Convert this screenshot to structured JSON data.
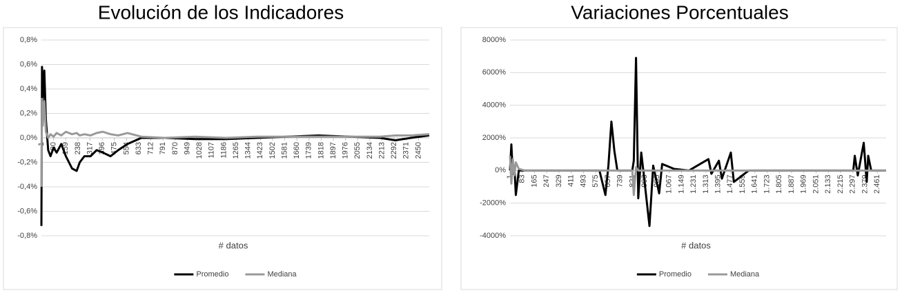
{
  "chart_data": [
    {
      "type": "line",
      "title": "Evolución de los Indicadores",
      "x_label": "# datos",
      "x": [
        1,
        5,
        10,
        20,
        30,
        45,
        60,
        80,
        100,
        130,
        160,
        200,
        230,
        250,
        280,
        320,
        360,
        400,
        450,
        500,
        560,
        650,
        800,
        1000,
        1200,
        1400,
        1600,
        1800,
        2000,
        2200,
        2300,
        2400,
        2520
      ],
      "series": [
        {
          "name": "Promedio",
          "color": "#000000",
          "values": [
            -0.72,
            0.58,
            0.3,
            0.55,
            0.15,
            -0.1,
            -0.15,
            -0.08,
            -0.12,
            -0.05,
            -0.15,
            -0.25,
            -0.27,
            -0.2,
            -0.15,
            -0.15,
            -0.1,
            -0.12,
            -0.15,
            -0.1,
            -0.05,
            0,
            0,
            -0.01,
            -0.01,
            0,
            0.01,
            0.02,
            0.01,
            0,
            -0.02,
            0,
            0.02
          ]
        },
        {
          "name": "Mediana",
          "color": "#999999",
          "values": [
            -0.4,
            0.32,
            0.1,
            0.3,
            0.05,
            0,
            0.03,
            0.01,
            0.04,
            0.02,
            0.05,
            0.03,
            0.04,
            0.02,
            0.03,
            0.02,
            0.04,
            0.05,
            0.03,
            0.02,
            0.04,
            0.01,
            0,
            0.01,
            0,
            0.01,
            0.01,
            0.01,
            0.01,
            0.01,
            0.02,
            0.02,
            0.03
          ]
        }
      ],
      "xlim": [
        1,
        2520
      ],
      "xticks": [
        1,
        80,
        159,
        238,
        317,
        396,
        475,
        554,
        633,
        712,
        791,
        870,
        949,
        1028,
        1107,
        1186,
        1265,
        1344,
        1423,
        1502,
        1581,
        1660,
        1739,
        1818,
        1897,
        1976,
        2055,
        2134,
        2213,
        2292,
        2371,
        2450
      ],
      "ylim": [
        -0.8,
        0.8
      ],
      "yticks": [
        {
          "value": -0.8,
          "label": "-0,8%"
        },
        {
          "value": -0.6,
          "label": "-0,6%"
        },
        {
          "value": -0.4,
          "label": "-0,4%"
        },
        {
          "value": -0.2,
          "label": "-0,2%"
        },
        {
          "value": 0,
          "label": "0,0%"
        },
        {
          "value": 0.2,
          "label": "0,2%"
        },
        {
          "value": 0.4,
          "label": "0,4%"
        },
        {
          "value": 0.6,
          "label": "0,6%"
        },
        {
          "value": 0.8,
          "label": "0,8%"
        }
      ],
      "grid": true,
      "legend": "bottom"
    },
    {
      "type": "line",
      "title": "Variaciones Porcentuales",
      "x_label": "# datos",
      "x": [
        1,
        10,
        20,
        30,
        40,
        60,
        100,
        300,
        600,
        640,
        660,
        680,
        700,
        720,
        820,
        830,
        845,
        860,
        880,
        900,
        935,
        960,
        1000,
        1020,
        1100,
        1200,
        1330,
        1350,
        1400,
        1420,
        1480,
        1500,
        1600,
        2000,
        2300,
        2310,
        2330,
        2370,
        2390,
        2400,
        2420,
        2520
      ],
      "series": [
        {
          "name": "Promedio",
          "color": "#000000",
          "values": [
            0,
            1600,
            -200,
            300,
            -1500,
            0,
            0,
            0,
            0,
            -1500,
            300,
            3000,
            1200,
            0,
            0,
            600,
            6900,
            -1700,
            1100,
            -500,
            -3400,
            300,
            -1400,
            400,
            100,
            0,
            700,
            -200,
            600,
            -500,
            1100,
            -700,
            0,
            0,
            0,
            900,
            -300,
            1700,
            -700,
            900,
            0,
            0
          ]
        },
        {
          "name": "Mediana",
          "color": "#999999",
          "values": [
            900,
            -800,
            700,
            -300,
            500,
            100,
            0,
            0,
            0,
            0,
            0,
            0,
            0,
            0,
            0,
            -1500,
            200,
            0,
            0,
            0,
            0,
            0,
            0,
            0,
            0,
            0,
            0,
            0,
            0,
            0,
            0,
            0,
            0,
            0,
            0,
            0,
            0,
            0,
            0,
            0,
            0,
            0
          ]
        }
      ],
      "xlim": [
        1,
        2520
      ],
      "xticks": [
        1,
        83,
        165,
        247,
        329,
        411,
        493,
        575,
        657,
        739,
        821,
        903,
        985,
        {
          "value": 1067,
          "label": "1.067"
        },
        {
          "value": 1149,
          "label": "1.149"
        },
        {
          "value": 1231,
          "label": "1.231"
        },
        {
          "value": 1313,
          "label": "1.313"
        },
        {
          "value": 1395,
          "label": "1.395"
        },
        {
          "value": 1477,
          "label": "1.477"
        },
        {
          "value": 1559,
          "label": "1.559"
        },
        {
          "value": 1641,
          "label": "1.641"
        },
        {
          "value": 1723,
          "label": "1.723"
        },
        {
          "value": 1805,
          "label": "1.805"
        },
        {
          "value": 1887,
          "label": "1.887"
        },
        {
          "value": 1969,
          "label": "1.969"
        },
        {
          "value": 2051,
          "label": "2.051"
        },
        {
          "value": 2133,
          "label": "2.133"
        },
        {
          "value": 2215,
          "label": "2.215"
        },
        {
          "value": 2297,
          "label": "2.297"
        },
        {
          "value": 2379,
          "label": "2.379"
        },
        {
          "value": 2461,
          "label": "2.461"
        }
      ],
      "ylim": [
        -4000,
        8000
      ],
      "yticks": [
        {
          "value": -4000,
          "label": "-4000%"
        },
        {
          "value": -2000,
          "label": "-2000%"
        },
        {
          "value": 0,
          "label": "0%"
        },
        {
          "value": 2000,
          "label": "2000%"
        },
        {
          "value": 4000,
          "label": "4000%"
        },
        {
          "value": 6000,
          "label": "6000%"
        },
        {
          "value": 8000,
          "label": "8000%"
        }
      ],
      "grid": true,
      "legend": "bottom"
    }
  ]
}
